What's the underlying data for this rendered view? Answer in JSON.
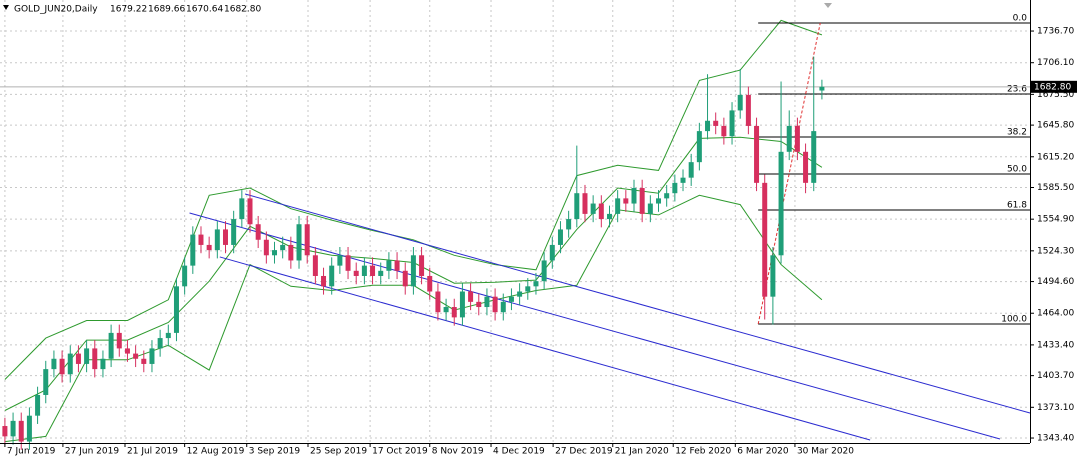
{
  "chart_data": {
    "type": "candlestick",
    "title": "GOLD_JUN20,Daily",
    "last_price": {
      "value": 1682.8,
      "label": "1682.80"
    },
    "up_color": "#1f9e78",
    "down_color": "#d62f5e",
    "grid": true,
    "xlim": [
      -0.6,
      125.47
    ],
    "ylim": [
      1338.6,
      1766.7
    ],
    "xticks": [
      {
        "value": 0,
        "label": "7 Jun 2019"
      },
      {
        "value": 7.1,
        "label": "27 Jun 2019"
      },
      {
        "value": 14.7,
        "label": "21 Jul 2019"
      },
      {
        "value": 22.0,
        "label": "12 Aug 2019"
      },
      {
        "value": 29.6,
        "label": "3 Sep 2019"
      },
      {
        "value": 37.1,
        "label": "25 Sep 2019"
      },
      {
        "value": 44.7,
        "label": "17 Oct 2019"
      },
      {
        "value": 52.0,
        "label": "8 Nov 2019"
      },
      {
        "value": 59.5,
        "label": "4 Dec 2019"
      },
      {
        "value": 67.1,
        "label": "27 Dec 2019"
      },
      {
        "value": 74.4,
        "label": "21 Jan 2020"
      },
      {
        "value": 81.8,
        "label": "12 Feb 2020"
      },
      {
        "value": 89.4,
        "label": "6 Mar 2020"
      },
      {
        "value": 96.7,
        "label": "30 Mar 2020"
      }
    ],
    "yticks": [
      {
        "value": 1736.7,
        "label": "1736.70"
      },
      {
        "value": 1706.1,
        "label": "1706.10"
      },
      {
        "value": 1675.5,
        "label": "1675.50"
      },
      {
        "value": 1645.8,
        "label": "1645.80"
      },
      {
        "value": 1615.2,
        "label": "1615.20"
      },
      {
        "value": 1585.5,
        "label": "1585.50"
      },
      {
        "value": 1554.9,
        "label": "1554.90"
      },
      {
        "value": 1524.3,
        "label": "1524.30"
      },
      {
        "value": 1494.6,
        "label": "1494.60"
      },
      {
        "value": 1464,
        "label": "1464.00"
      },
      {
        "value": 1433.4,
        "label": "1433.40"
      },
      {
        "value": 1403.7,
        "label": "1403.70"
      },
      {
        "value": 1373.1,
        "label": "1373.10"
      },
      {
        "value": 1343.4,
        "label": "1343.40"
      }
    ],
    "candles": {
      "open": [
        1355,
        1345,
        1360,
        1340,
        1365,
        1385,
        1410,
        1420,
        1405,
        1425,
        1415,
        1430,
        1410,
        1420,
        1445,
        1430,
        1425,
        1420,
        1415,
        1430,
        1440,
        1445,
        1490,
        1510,
        1540,
        1530,
        1525,
        1545,
        1530,
        1555,
        1575,
        1550,
        1535,
        1520,
        1525,
        1530,
        1515,
        1550,
        1520,
        1500,
        1490,
        1510,
        1520,
        1505,
        1500,
        1510,
        1500,
        1505,
        1515,
        1505,
        1490,
        1520,
        1500,
        1485,
        1465,
        1470,
        1460,
        1485,
        1475,
        1470,
        1480,
        1465,
        1475,
        1480,
        1485,
        1490,
        1495,
        1515,
        1530,
        1545,
        1555,
        1580,
        1560,
        1570,
        1555,
        1560,
        1575,
        1570,
        1585,
        1560,
        1570,
        1575,
        1580,
        1590,
        1595,
        1610,
        1640,
        1650,
        1645,
        1635,
        1660,
        1675,
        1645,
        1590,
        1480,
        1520,
        1620,
        1645,
        1620,
        1590,
        1679.22
      ],
      "high": [
        1363,
        1368,
        1368,
        1373,
        1393,
        1418,
        1428,
        1428,
        1433,
        1433,
        1438,
        1438,
        1428,
        1453,
        1453,
        1438,
        1433,
        1428,
        1438,
        1448,
        1453,
        1498,
        1518,
        1548,
        1548,
        1538,
        1553,
        1553,
        1563,
        1583,
        1583,
        1558,
        1543,
        1533,
        1538,
        1538,
        1558,
        1558,
        1528,
        1508,
        1518,
        1528,
        1528,
        1513,
        1518,
        1518,
        1513,
        1523,
        1523,
        1513,
        1528,
        1528,
        1508,
        1493,
        1478,
        1478,
        1493,
        1493,
        1483,
        1488,
        1488,
        1483,
        1488,
        1493,
        1498,
        1503,
        1523,
        1538,
        1553,
        1563,
        1626,
        1588,
        1578,
        1578,
        1568,
        1583,
        1583,
        1593,
        1593,
        1578,
        1583,
        1588,
        1598,
        1603,
        1618,
        1648,
        1695,
        1658,
        1653,
        1668,
        1700,
        1683,
        1653,
        1598,
        1528,
        1688,
        1660,
        1653,
        1628,
        1712,
        1689.66
      ],
      "low": [
        1337,
        1337,
        1332,
        1332,
        1357,
        1377,
        1402,
        1397,
        1397,
        1407,
        1407,
        1402,
        1402,
        1412,
        1422,
        1417,
        1412,
        1407,
        1407,
        1422,
        1432,
        1437,
        1482,
        1502,
        1522,
        1517,
        1517,
        1522,
        1522,
        1547,
        1542,
        1527,
        1512,
        1512,
        1517,
        1507,
        1507,
        1512,
        1492,
        1482,
        1482,
        1502,
        1497,
        1492,
        1492,
        1492,
        1492,
        1497,
        1497,
        1482,
        1482,
        1492,
        1477,
        1457,
        1457,
        1452,
        1452,
        1467,
        1462,
        1462,
        1457,
        1457,
        1467,
        1472,
        1477,
        1482,
        1487,
        1507,
        1522,
        1537,
        1547,
        1552,
        1552,
        1547,
        1547,
        1552,
        1562,
        1562,
        1552,
        1552,
        1562,
        1567,
        1572,
        1582,
        1587,
        1602,
        1632,
        1637,
        1627,
        1627,
        1652,
        1637,
        1582,
        1458,
        1453,
        1512,
        1612,
        1612,
        1580,
        1582,
        1670.64
      ],
      "close": [
        1345,
        1360,
        1340,
        1365,
        1385,
        1410,
        1420,
        1405,
        1425,
        1415,
        1430,
        1410,
        1420,
        1445,
        1430,
        1425,
        1420,
        1415,
        1430,
        1440,
        1445,
        1490,
        1510,
        1540,
        1530,
        1525,
        1545,
        1530,
        1555,
        1575,
        1550,
        1535,
        1520,
        1525,
        1530,
        1515,
        1550,
        1520,
        1500,
        1490,
        1510,
        1520,
        1505,
        1500,
        1510,
        1500,
        1505,
        1515,
        1505,
        1490,
        1520,
        1500,
        1485,
        1465,
        1470,
        1460,
        1485,
        1475,
        1470,
        1480,
        1465,
        1475,
        1480,
        1485,
        1490,
        1495,
        1515,
        1530,
        1545,
        1555,
        1580,
        1560,
        1570,
        1555,
        1560,
        1575,
        1570,
        1585,
        1560,
        1570,
        1575,
        1580,
        1590,
        1595,
        1610,
        1640,
        1650,
        1645,
        1635,
        1660,
        1675,
        1645,
        1590,
        1480,
        1520,
        1620,
        1645,
        1620,
        1590,
        1640,
        1682.8
      ]
    },
    "bands": {
      "color": "#2e9a2e",
      "x": [
        0,
        5,
        10,
        15,
        20,
        25,
        30,
        35,
        40,
        45,
        50,
        55,
        60,
        65,
        70,
        75,
        80,
        85,
        90,
        95,
        100
      ],
      "upper": [
        1400,
        1440,
        1457,
        1457,
        1477,
        1578,
        1585,
        1565,
        1554,
        1544,
        1535,
        1520,
        1511,
        1506,
        1597,
        1607,
        1602,
        1689,
        1699,
        1747,
        1733
      ],
      "middle": [
        1370,
        1390,
        1438,
        1438,
        1455,
        1495,
        1548,
        1528,
        1520,
        1517,
        1513,
        1493,
        1494,
        1496,
        1545,
        1585,
        1580,
        1633,
        1634,
        1630,
        1605
      ],
      "lower": [
        1340,
        1345,
        1419,
        1419,
        1433,
        1409,
        1511,
        1490,
        1486,
        1491,
        1491,
        1467,
        1477,
        1486,
        1491,
        1564,
        1559,
        1578,
        1569,
        1511,
        1477
      ]
    },
    "channels": {
      "color": "#2b2bd0",
      "lines": [
        {
          "x": [
            29.4,
            125.47
          ],
          "y": [
            1579.2,
            1367.6
          ]
        },
        {
          "x": [
            22.6,
            121.8
          ],
          "y": [
            1560.9,
            1342.5
          ]
        },
        {
          "x": [
            26.3,
            105.9
          ],
          "y": [
            1518.4,
            1341.5
          ]
        }
      ]
    },
    "fibonacci": {
      "start": 92.2,
      "levels": [
        {
          "value": 0,
          "label": "0.0"
        },
        23.6,
        38.2,
        {
          "value": 50,
          "label": "50.0"
        },
        61.8,
        {
          "value": 100,
          "label": "100.0"
        }
      ],
      "prices": [
        1744.5,
        1675.9,
        1634.3,
        1598.6,
        1563.8,
        1453.6
      ],
      "trend": {
        "x": [
          92.2,
          99.8
        ],
        "y": [
          1453.6,
          1744.5
        ],
        "color": "#e03030"
      }
    }
  }
}
